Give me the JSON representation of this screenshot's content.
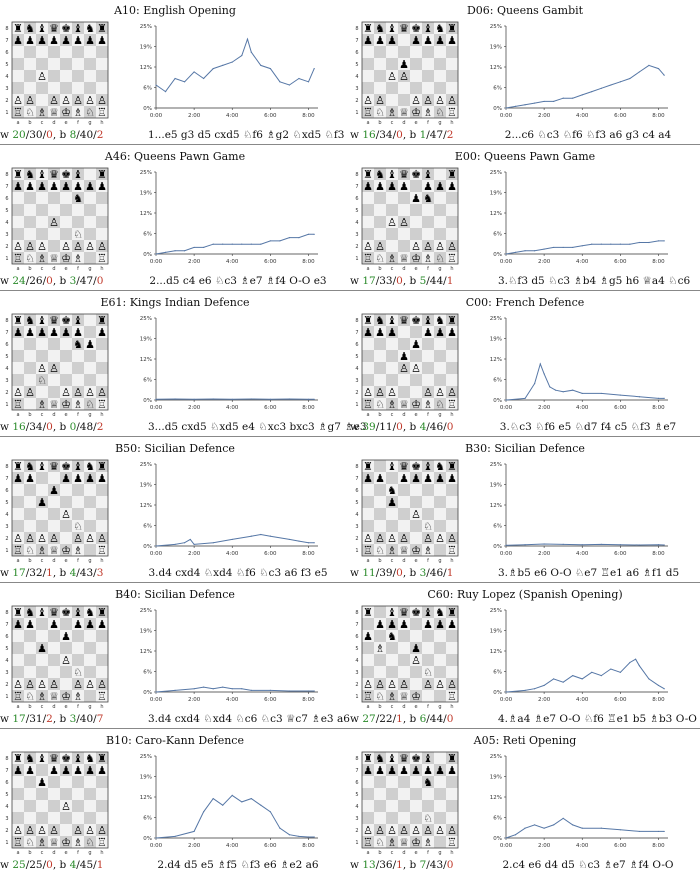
{
  "colors": {
    "line": "#5677a6",
    "win": "#2a8a2a",
    "loss": "#c0392b",
    "text": "#111111"
  },
  "files": [
    "a",
    "b",
    "c",
    "d",
    "e",
    "f",
    "g",
    "h"
  ],
  "ranks": [
    "8",
    "7",
    "6",
    "5",
    "4",
    "3",
    "2",
    "1"
  ],
  "pieces": {
    "wK": "♔",
    "wQ": "♕",
    "wR": "♖",
    "wB": "♗",
    "wN": "♘",
    "wP": "♙",
    "bK": "♚",
    "bQ": "♛",
    "bR": "♜",
    "bB": "♝",
    "bN": "♞",
    "bP": "♟"
  },
  "openings": [
    {
      "title": "A10: English Opening",
      "tally": {
        "w_prefix": "w ",
        "w_a": "20",
        "w_b": "/30/",
        "w_c": "0",
        "b_prefix": ", b ",
        "b_a": "8",
        "b_b": "/40/",
        "b_c": "2"
      },
      "moves": "1...e5 g3 d5 cxd5 ♘f6 ♗g2 ♘xd5 ♘f3",
      "position": [
        "rnbqkbnr",
        "pppppppp",
        "........",
        "........",
        "..P.....",
        "........",
        "PP.PPPPP",
        "RNBQKBNR"
      ],
      "chart_data": {
        "type": "line",
        "ylim": [
          0,
          25
        ],
        "yticks": [
          "0%",
          "6%",
          "12%",
          "19%",
          "25%"
        ],
        "xlim": [
          0,
          8.5
        ],
        "xticks": [
          "0:00",
          "2:00",
          "4:00",
          "6:00",
          "8:00"
        ],
        "x": [
          0,
          0.5,
          1,
          1.5,
          2,
          2.5,
          3,
          3.5,
          4,
          4.5,
          4.8,
          5,
          5.5,
          6,
          6.5,
          7,
          7.5,
          8,
          8.3
        ],
        "values": [
          7,
          5,
          9,
          8,
          11,
          9,
          12,
          13,
          14,
          16,
          21,
          17,
          13,
          12,
          8,
          7,
          9,
          8,
          12
        ]
      }
    },
    {
      "title": "D06: Queens Gambit",
      "tally": {
        "w_prefix": "w ",
        "w_a": "16",
        "w_b": "/34/",
        "w_c": "0",
        "b_prefix": ", b ",
        "b_a": "1",
        "b_b": "/47/",
        "b_c": "2"
      },
      "moves": "2...c6 ♘c3 ♘f6 ♘f3 a6 g3 c4 a4",
      "position": [
        "rnbqkbnr",
        "ppp.pppp",
        "........",
        "...p....",
        "..PP....",
        "........",
        "PP..PPPP",
        "RNBQKBNR"
      ],
      "chart_data": {
        "type": "line",
        "ylim": [
          0,
          25
        ],
        "yticks": [
          "0%",
          "6%",
          "12%",
          "19%",
          "25%"
        ],
        "xlim": [
          0,
          8.5
        ],
        "xticks": [
          "0:00",
          "2:00",
          "4:00",
          "6:00",
          "8:00"
        ],
        "x": [
          0,
          0.5,
          1,
          1.5,
          2,
          2.5,
          3,
          3.5,
          4,
          4.5,
          5,
          5.5,
          6,
          6.5,
          7,
          7.5,
          8,
          8.3
        ],
        "values": [
          0,
          0.5,
          1,
          1.5,
          2,
          2,
          3,
          3,
          4,
          5,
          6,
          7,
          8,
          9,
          11,
          13,
          12,
          10
        ]
      }
    },
    {
      "title": "A46: Queens Pawn Game",
      "tally": {
        "w_prefix": "w ",
        "w_a": "24",
        "w_b": "/26/",
        "w_c": "0",
        "b_prefix": ", b ",
        "b_a": "3",
        "b_b": "/47/",
        "b_c": "0"
      },
      "moves": "2...d5 c4 e6 ♘c3 ♗e7 ♗f4 O-O e3",
      "position": [
        "rnbqkb.r",
        "pppppppp",
        ".....n..",
        "........",
        "...P....",
        ".....N..",
        "PPP.PPPP",
        "RNBQKB.R"
      ],
      "chart_data": {
        "type": "line",
        "ylim": [
          0,
          25
        ],
        "yticks": [
          "0%",
          "6%",
          "12%",
          "19%",
          "25%"
        ],
        "xlim": [
          0,
          8.5
        ],
        "xticks": [
          "0:00",
          "2:00",
          "4:00",
          "6:00",
          "8:00"
        ],
        "x": [
          0,
          0.5,
          1,
          1.5,
          2,
          2.5,
          3,
          3.5,
          4,
          4.5,
          5,
          5.5,
          6,
          6.5,
          7,
          7.5,
          8,
          8.3
        ],
        "values": [
          0,
          0.5,
          1,
          1,
          2,
          2,
          3,
          3,
          3,
          3,
          3,
          3,
          4,
          4,
          5,
          5,
          6,
          6
        ]
      }
    },
    {
      "title": "E00: Queens Pawn Game",
      "tally": {
        "w_prefix": "w ",
        "w_a": "17",
        "w_b": "/33/",
        "w_c": "0",
        "b_prefix": ", b ",
        "b_a": "5",
        "b_b": "/44/",
        "b_c": "1"
      },
      "moves": "3.♘f3 d5 ♘c3 ♗b4 ♗g5 h6 ♕a4 ♘c6",
      "position": [
        "rnbqkb.r",
        "pppp.ppp",
        "....pn..",
        "........",
        "..PP....",
        "........",
        "PP..PPPP",
        "RNBQKBNR"
      ],
      "chart_data": {
        "type": "line",
        "ylim": [
          0,
          25
        ],
        "yticks": [
          "0%",
          "6%",
          "12%",
          "19%",
          "25%"
        ],
        "xlim": [
          0,
          8.5
        ],
        "xticks": [
          "0:00",
          "2:00",
          "4:00",
          "6:00",
          "8:00"
        ],
        "x": [
          0,
          0.5,
          1,
          1.5,
          2,
          2.5,
          3,
          3.5,
          4,
          4.5,
          5,
          5.5,
          6,
          6.5,
          7,
          7.5,
          8,
          8.3
        ],
        "values": [
          0,
          0.5,
          1,
          1,
          1.5,
          2,
          2,
          2,
          2.5,
          3,
          3,
          3,
          3,
          3,
          3.5,
          3.5,
          4,
          4
        ]
      }
    },
    {
      "title": "E61: Kings Indian Defence",
      "tally": {
        "w_prefix": "w ",
        "w_a": "16",
        "w_b": "/34/",
        "w_c": "0",
        "b_prefix": ", b ",
        "b_a": "0",
        "b_b": "/48/",
        "b_c": "2"
      },
      "moves": "3...d5 cxd5 ♘xd5 e4 ♘xc3 bxc3 ♗g7 ♗e3",
      "position": [
        "rnbqkb.r",
        "pppppp.p",
        ".....np.",
        "........",
        "..PP....",
        "..N.....",
        "PP..PPPP",
        "R.BQKBNR"
      ],
      "chart_data": {
        "type": "line",
        "ylim": [
          0,
          25
        ],
        "yticks": [
          "0%",
          "6%",
          "12%",
          "19%",
          "25%"
        ],
        "xlim": [
          0,
          8.5
        ],
        "xticks": [
          "0:00",
          "2:00",
          "4:00",
          "6:00",
          "8:00"
        ],
        "x": [
          0,
          1,
          2,
          3,
          4,
          5,
          6,
          7,
          8,
          8.3
        ],
        "values": [
          0.2,
          0.3,
          0.2,
          0.3,
          0.2,
          0.3,
          0.2,
          0.3,
          0.2,
          0.2
        ]
      }
    },
    {
      "title": "C00: French Defence",
      "tally": {
        "w_prefix": "w ",
        "w_a": "39",
        "w_b": "/11/",
        "w_c": "0",
        "b_prefix": ", b ",
        "b_a": "4",
        "b_b": "/46/",
        "b_c": "0"
      },
      "moves": "3.♘c3 ♘f6 e5 ♘d7 f4 c5 ♘f3 ♗e7",
      "position": [
        "rnbqkbnr",
        "ppp..ppp",
        "....p...",
        "...p....",
        "...PP...",
        "........",
        "PPP..PPP",
        "RNBQKBNR"
      ],
      "chart_data": {
        "type": "line",
        "ylim": [
          0,
          25
        ],
        "yticks": [
          "0%",
          "6%",
          "12%",
          "19%",
          "25%"
        ],
        "xlim": [
          0,
          8.5
        ],
        "xticks": [
          "0:00",
          "2:00",
          "4:00",
          "6:00",
          "8:00"
        ],
        "x": [
          0,
          1,
          1.5,
          1.8,
          2,
          2.3,
          2.6,
          3,
          3.5,
          4,
          5,
          6,
          7,
          8,
          8.3
        ],
        "values": [
          0,
          0.5,
          5,
          11,
          8,
          4,
          3,
          2.5,
          3,
          2,
          2,
          1.5,
          1,
          0.5,
          0.5
        ]
      }
    },
    {
      "title": "B50: Sicilian Defence",
      "tally": {
        "w_prefix": "w ",
        "w_a": "17",
        "w_b": "/32/",
        "w_c": "1",
        "b_prefix": ", b ",
        "b_a": "4",
        "b_b": "/43/",
        "b_c": "3"
      },
      "moves": "3.d4 cxd4 ♘xd4 ♘f6 ♘c3 a6 f3 e5",
      "position": [
        "rnbqkbnr",
        "pp..pppp",
        "...p....",
        "..p.....",
        "....P...",
        ".....N..",
        "PPPP.PPP",
        "RNBQKB.R"
      ],
      "chart_data": {
        "type": "line",
        "ylim": [
          0,
          25
        ],
        "yticks": [
          "0%",
          "6%",
          "12%",
          "19%",
          "25%"
        ],
        "xlim": [
          0,
          8.5
        ],
        "xticks": [
          "0:00",
          "2:00",
          "4:00",
          "6:00",
          "8:00"
        ],
        "x": [
          0,
          1,
          1.5,
          1.8,
          2,
          3,
          4,
          5,
          5.5,
          6,
          7,
          7.5,
          8,
          8.3
        ],
        "values": [
          0,
          0.5,
          1,
          2,
          0.5,
          1,
          2,
          3,
          3.5,
          3,
          2,
          1.5,
          1,
          1
        ]
      }
    },
    {
      "title": "B30: Sicilian Defence",
      "tally": {
        "w_prefix": "w ",
        "w_a": "11",
        "w_b": "/39/",
        "w_c": "0",
        "b_prefix": ", b ",
        "b_a": "3",
        "b_b": "/46/",
        "b_c": "1"
      },
      "moves": "3.♗b5 e6 O-O ♘e7 ♖e1 a6 ♗f1 d5",
      "position": [
        "r.bqkbnr",
        "pp.ppppp",
        "..n.....",
        "..p.....",
        "....P...",
        ".....N..",
        "PPPP.PPP",
        "RNBQKB.R"
      ],
      "chart_data": {
        "type": "line",
        "ylim": [
          0,
          25
        ],
        "yticks": [
          "0%",
          "6%",
          "12%",
          "19%",
          "25%"
        ],
        "xlim": [
          0,
          8.5
        ],
        "xticks": [
          "0:00",
          "2:00",
          "4:00",
          "6:00",
          "8:00"
        ],
        "x": [
          0,
          1,
          2,
          3,
          4,
          5,
          6,
          7,
          8,
          8.3
        ],
        "values": [
          0.2,
          0.4,
          0.6,
          0.5,
          0.4,
          0.5,
          0.4,
          0.3,
          0.4,
          0.3
        ]
      }
    },
    {
      "title": "B40: Sicilian Defence",
      "tally": {
        "w_prefix": "w ",
        "w_a": "17",
        "w_b": "/31/",
        "w_c": "2",
        "b_prefix": ", b ",
        "b_a": "3",
        "b_b": "/40/",
        "b_c": "7"
      },
      "moves": "3.d4 cxd4 ♘xd4 ♘c6 ♘c3 ♕c7 ♗e3 a6",
      "position": [
        "rnbqkbnr",
        "pp.p.ppp",
        "....p...",
        "..p.....",
        "....P...",
        ".....N..",
        "PPPP.PPP",
        "RNBQKB.R"
      ],
      "chart_data": {
        "type": "line",
        "ylim": [
          0,
          25
        ],
        "yticks": [
          "0%",
          "6%",
          "12%",
          "19%",
          "25%"
        ],
        "xlim": [
          0,
          8.5
        ],
        "xticks": [
          "0:00",
          "2:00",
          "4:00",
          "6:00",
          "8:00"
        ],
        "x": [
          0,
          1,
          2,
          2.5,
          3,
          3.5,
          4,
          4.5,
          5,
          6,
          7,
          8,
          8.3
        ],
        "values": [
          0,
          0.5,
          1,
          1.5,
          1,
          1.5,
          1,
          1,
          0.5,
          0.5,
          0.3,
          0.3,
          0.3
        ]
      }
    },
    {
      "title": "C60: Ruy Lopez (Spanish Opening)",
      "tally": {
        "w_prefix": "w ",
        "w_a": "27",
        "w_b": "/22/",
        "w_c": "1",
        "b_prefix": ", b ",
        "b_a": "6",
        "b_b": "/44/",
        "b_c": "0"
      },
      "moves": "4.♗a4 ♗e7 O-O ♘f6 ♖e1 b5 ♗b3 O-O",
      "position": [
        "r.bqkbnr",
        ".ppp.ppp",
        "p.n.....",
        ".B..p...",
        "....P...",
        ".....N..",
        "PPPP.PPP",
        "RNBQK..R"
      ],
      "chart_data": {
        "type": "line",
        "ylim": [
          0,
          25
        ],
        "yticks": [
          "0%",
          "6%",
          "12%",
          "19%",
          "25%"
        ],
        "xlim": [
          0,
          8.5
        ],
        "xticks": [
          "0:00",
          "2:00",
          "4:00",
          "6:00",
          "8:00"
        ],
        "x": [
          0,
          1,
          1.5,
          2,
          2.5,
          3,
          3.5,
          4,
          4.5,
          5,
          5.5,
          6,
          6.5,
          6.8,
          7,
          7.5,
          8,
          8.3
        ],
        "values": [
          0,
          0.5,
          1,
          2,
          4,
          3,
          5,
          4,
          6,
          5,
          7,
          6,
          9,
          10,
          8,
          4,
          2,
          1
        ]
      }
    },
    {
      "title": "B10: Caro-Kann Defence",
      "tally": {
        "w_prefix": "w ",
        "w_a": "25",
        "w_b": "/25/",
        "w_c": "0",
        "b_prefix": ", b ",
        "b_a": "4",
        "b_b": "/45/",
        "b_c": "1"
      },
      "moves": "2.d4 d5 e5 ♗f5 ♘f3 e6 ♗e2 a6",
      "position": [
        "rnbqkbnr",
        "pp.ppppp",
        "..p.....",
        "........",
        "....P...",
        "........",
        "PPPP.PPP",
        "RNBQKBNR"
      ],
      "chart_data": {
        "type": "line",
        "ylim": [
          0,
          25
        ],
        "yticks": [
          "0%",
          "6%",
          "12%",
          "19%",
          "25%"
        ],
        "xlim": [
          0,
          8.5
        ],
        "xticks": [
          "0:00",
          "2:00",
          "4:00",
          "6:00",
          "8:00"
        ],
        "x": [
          0,
          1,
          2,
          2.5,
          3,
          3.5,
          4,
          4.5,
          5,
          5.5,
          6,
          6.5,
          7,
          7.5,
          8,
          8.3
        ],
        "values": [
          0,
          0.5,
          2,
          8,
          12,
          10,
          13,
          11,
          12,
          10,
          8,
          3,
          1,
          0.5,
          0.3,
          0.3
        ]
      }
    },
    {
      "title": "A05: Reti Opening",
      "tally": {
        "w_prefix": "w ",
        "w_a": "13",
        "w_b": "/36/",
        "w_c": "1",
        "b_prefix": ", b ",
        "b_a": "7",
        "b_b": "/43/",
        "b_c": "0"
      },
      "moves": "2.c4 e6 d4 d5 ♘c3 ♗e7 ♗f4 O-O",
      "position": [
        "rnbqkb.r",
        "pppppppp",
        ".....n..",
        "........",
        "........",
        ".....N..",
        "PPPPPPPP",
        "RNBQKB.R"
      ],
      "chart_data": {
        "type": "line",
        "ylim": [
          0,
          25
        ],
        "yticks": [
          "0%",
          "6%",
          "12%",
          "19%",
          "25%"
        ],
        "xlim": [
          0,
          8.5
        ],
        "xticks": [
          "0:00",
          "2:00",
          "4:00",
          "6:00",
          "8:00"
        ],
        "x": [
          0,
          0.5,
          1,
          1.5,
          2,
          2.5,
          3,
          3.5,
          4,
          5,
          6,
          7,
          8,
          8.3
        ],
        "values": [
          0,
          1,
          3,
          4,
          3,
          4,
          6,
          4,
          3,
          3,
          2.5,
          2,
          2,
          2
        ]
      }
    }
  ]
}
